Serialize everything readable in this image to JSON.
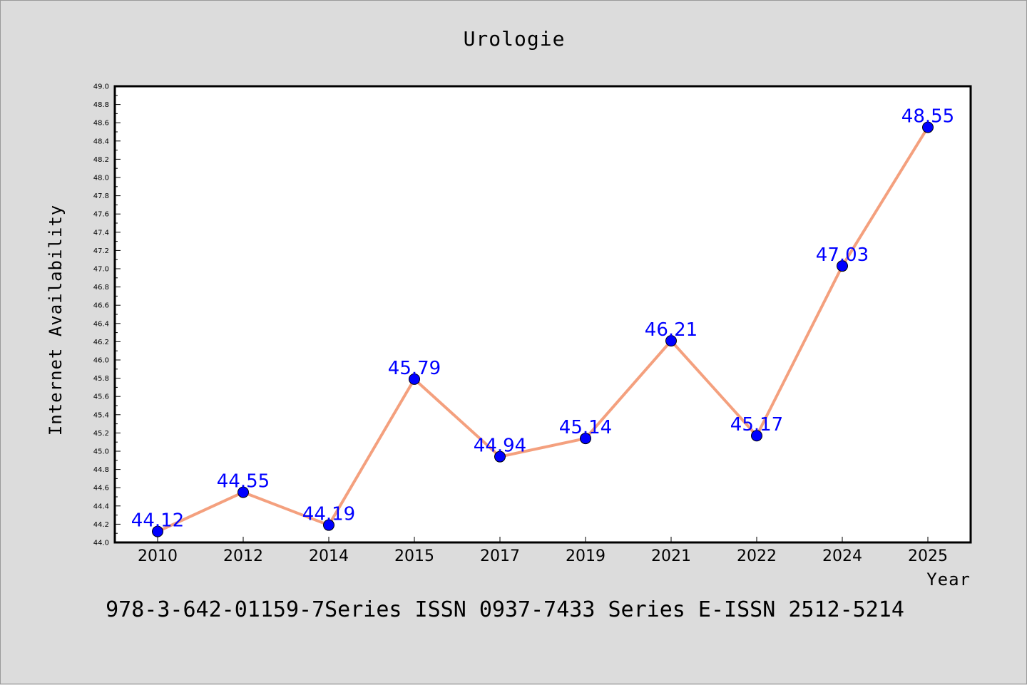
{
  "chart_data": {
    "type": "line",
    "title": "Urologie",
    "xlabel": "Year",
    "ylabel": "Internet Availability",
    "categories": [
      "2010",
      "2012",
      "2014",
      "2015",
      "2017",
      "2019",
      "2021",
      "2022",
      "2024",
      "2025"
    ],
    "series": [
      {
        "values": [
          44.12,
          44.55,
          44.19,
          45.79,
          44.94,
          45.14,
          46.21,
          45.17,
          47.03,
          48.55
        ],
        "data_labels": [
          "44.12",
          "44.55",
          "44.19",
          "45.79",
          "44.94",
          "45.14",
          "46.21",
          "45.17",
          "47.03",
          "48.55"
        ],
        "line_color": "#f4a07e",
        "marker_color": "#0000ff"
      }
    ],
    "ylim": [
      44.0,
      49.0
    ],
    "yticks": [
      "44.0",
      "44.2",
      "44.4",
      "44.6",
      "44.8",
      "45.0",
      "45.2",
      "45.4",
      "45.6",
      "45.8",
      "46.0",
      "46.2",
      "46.4",
      "46.6",
      "46.8",
      "47.0",
      "47.2",
      "47.4",
      "47.6",
      "47.8",
      "48.0",
      "48.2",
      "48.4",
      "48.6",
      "48.8",
      "49.0"
    ],
    "grid": false,
    "legend": "none",
    "footer_text": "978-3-642-01159-7Series ISSN 0937-7433 Series E-ISSN 2512-5214"
  },
  "colors": {
    "background": "#dcdcdc",
    "plot_background": "#ffffff",
    "line": "#f4a07e",
    "marker": "#0000ff",
    "data_label": "#0000ff"
  }
}
